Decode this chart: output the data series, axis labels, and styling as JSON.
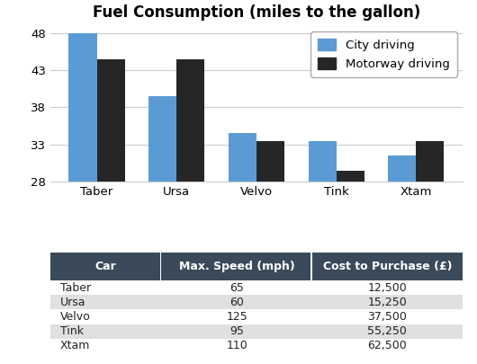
{
  "title": "Fuel Consumption (miles to the gallon)",
  "categories": [
    "Taber",
    "Ursa",
    "Velvo",
    "Tink",
    "Xtam"
  ],
  "city_driving": [
    48,
    39.5,
    34.5,
    33.5,
    31.5
  ],
  "motorway_driving": [
    44.5,
    44.5,
    33.5,
    29.5,
    33.5
  ],
  "city_color": "#5B9BD5",
  "motorway_color": "#262626",
  "ylim": [
    28,
    49
  ],
  "yticks": [
    28,
    33,
    38,
    43,
    48
  ],
  "bar_width": 0.35,
  "legend_labels": [
    "City driving",
    "Motorway driving"
  ],
  "background_color": "#ffffff",
  "table_header_color": "#3B4A5A",
  "table_header_text_color": "#ffffff",
  "table_row_colors": [
    "#ffffff",
    "#E0E0E0"
  ],
  "table_columns": [
    "Car",
    "Max. Speed (mph)",
    "Cost to Purchase (£)"
  ],
  "table_data": [
    [
      "Taber",
      "65",
      "12,500"
    ],
    [
      "Ursa",
      "60",
      "15,250"
    ],
    [
      "Velvo",
      "125",
      "37,500"
    ],
    [
      "Tink",
      "95",
      "55,250"
    ],
    [
      "Xtam",
      "110",
      "62,500"
    ]
  ],
  "title_fontsize": 12,
  "axis_fontsize": 9.5,
  "table_header_fontsize": 9,
  "table_data_fontsize": 9,
  "grid_color": "#cccccc"
}
